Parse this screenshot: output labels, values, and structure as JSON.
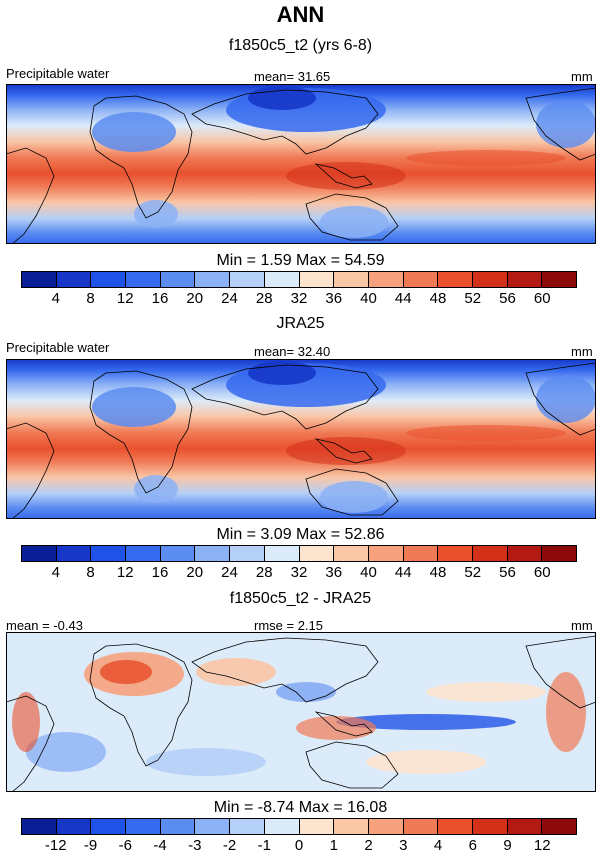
{
  "header": {
    "title": "ANN"
  },
  "panels": [
    {
      "case_title": "f1850c5_t2 (yrs 6-8)",
      "left_label": "Precipitable water",
      "center_label": "mean=  31.65",
      "right_label": "mm",
      "min_max": "Min =   1.59 Max =  54.59",
      "field": "abs"
    },
    {
      "case_title": "JRA25",
      "left_label": "Precipitable water",
      "center_label": "mean=  32.40",
      "right_label": "mm",
      "min_max": "Min =   3.09 Max =  52.86",
      "field": "abs"
    },
    {
      "case_title": "f1850c5_t2 - JRA25",
      "left_label": "mean =  -0.43",
      "center_label": "rmse =   2.15",
      "right_label": "mm",
      "min_max": "Min =  -8.74 Max =  16.08",
      "field": "diff"
    }
  ],
  "colorbars": {
    "abs": {
      "colors": [
        "#0a1e96",
        "#1637c8",
        "#1f52e6",
        "#3569ee",
        "#5b8cf0",
        "#8cb2f5",
        "#b5d0f7",
        "#dcebfa",
        "#fde4cf",
        "#f9c6a6",
        "#f6a27e",
        "#f07a55",
        "#e9512d",
        "#d3301a",
        "#b31a14",
        "#8c0a0a"
      ],
      "ticks": [
        "4",
        "8",
        "12",
        "16",
        "20",
        "24",
        "28",
        "32",
        "36",
        "40",
        "44",
        "48",
        "52",
        "56",
        "60"
      ]
    },
    "diff": {
      "colors": [
        "#0a1e96",
        "#1637c8",
        "#1f52e6",
        "#3569ee",
        "#5b8cf0",
        "#8cb2f5",
        "#b5d0f7",
        "#dcebfa",
        "#fde4cf",
        "#f9c6a6",
        "#f6a27e",
        "#f07a55",
        "#e9512d",
        "#d3301a",
        "#b31a14",
        "#8c0a0a"
      ],
      "ticks": [
        "-12",
        "-9",
        "-6",
        "-4",
        "-3",
        "-2",
        "-1",
        "0",
        "1",
        "2",
        "3",
        "4",
        "6",
        "9",
        "12"
      ]
    }
  },
  "chart_data": [
    {
      "type": "heatmap",
      "title": "f1850c5_t2 (yrs 6-8)",
      "variable": "Precipitable water",
      "units": "mm",
      "mean": 31.65,
      "min": 1.59,
      "max": 54.59,
      "levels": [
        4,
        8,
        12,
        16,
        20,
        24,
        28,
        32,
        36,
        40,
        44,
        48,
        52,
        56,
        60
      ]
    },
    {
      "type": "heatmap",
      "title": "JRA25",
      "variable": "Precipitable water",
      "units": "mm",
      "mean": 32.4,
      "min": 3.09,
      "max": 52.86,
      "levels": [
        4,
        8,
        12,
        16,
        20,
        24,
        28,
        32,
        36,
        40,
        44,
        48,
        52,
        56,
        60
      ]
    },
    {
      "type": "heatmap",
      "title": "f1850c5_t2 - JRA25",
      "units": "mm",
      "mean": -0.43,
      "rmse": 2.15,
      "min": -8.74,
      "max": 16.08,
      "levels": [
        -12,
        -9,
        -6,
        -4,
        -3,
        -2,
        -1,
        0,
        1,
        2,
        3,
        4,
        6,
        9,
        12
      ]
    }
  ]
}
